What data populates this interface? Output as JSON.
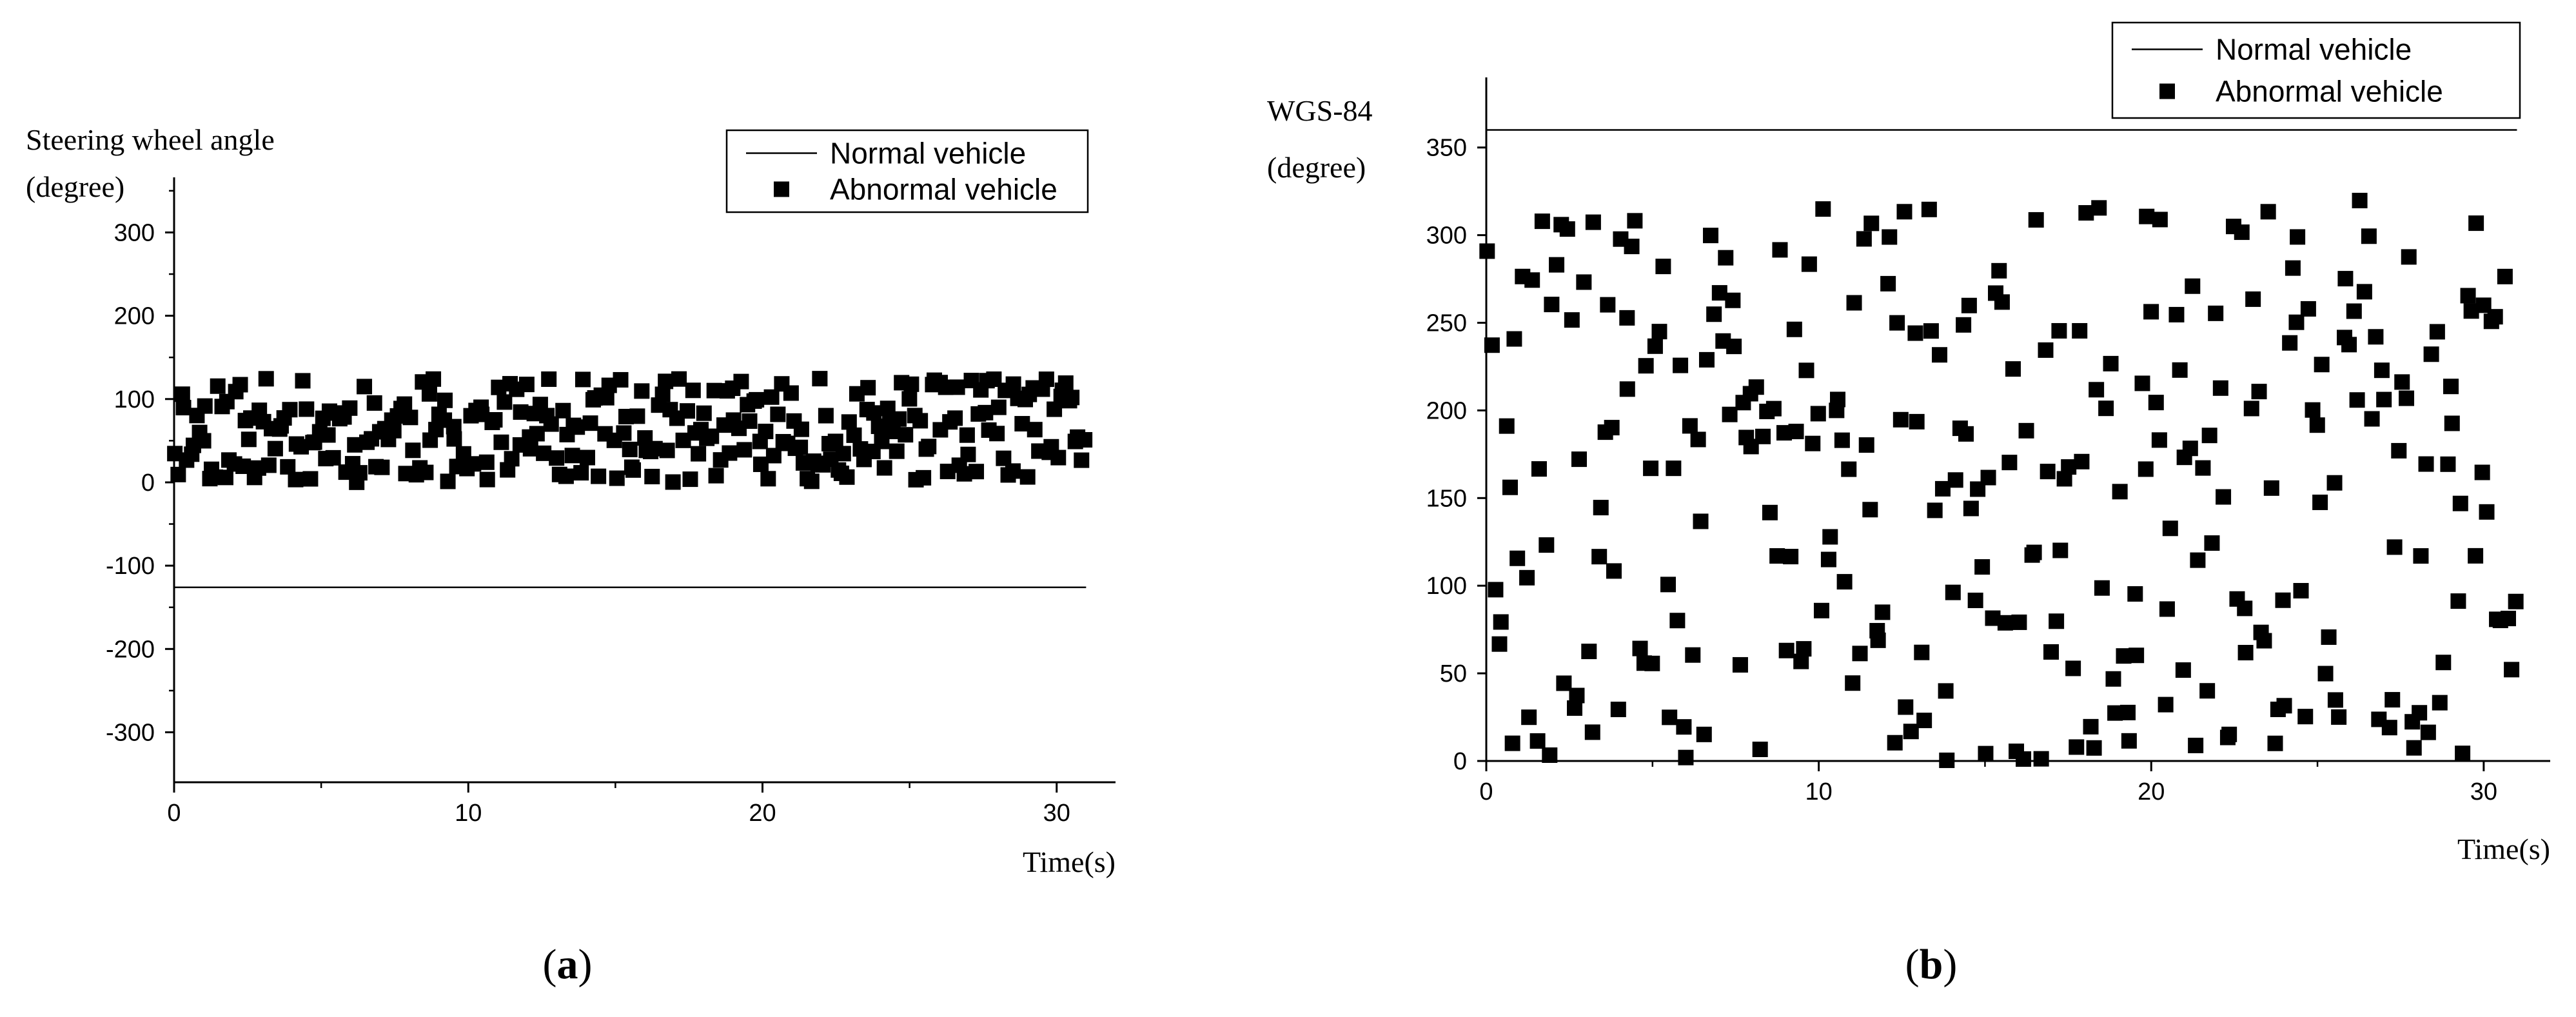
{
  "chart_data": [
    {
      "type": "scatter",
      "panel_label_open": "(",
      "panel_label_letter": "a",
      "panel_label_close": ")",
      "xlabel": "Time(s)",
      "ylabel_line1": "Steering wheel angle",
      "ylabel_line2": "(degree)",
      "xlim": [
        0,
        32
      ],
      "ylim": [
        -360,
        370
      ],
      "x_ticks": [
        0,
        10,
        20,
        30
      ],
      "y_ticks": [
        -300,
        -200,
        -100,
        0,
        100,
        200,
        300
      ],
      "legend_placement": "top-right",
      "series": [
        {
          "name": "Normal vehicle",
          "kind": "line",
          "y_const": -126,
          "x_range": [
            0,
            31
          ]
        },
        {
          "name": "Abnormal vehicle",
          "kind": "scatter",
          "y_range": [
            0,
            125
          ],
          "x_range": [
            0,
            31
          ],
          "count": 300
        }
      ]
    },
    {
      "type": "scatter",
      "panel_label_open": "(",
      "panel_label_letter": "b",
      "panel_label_close": ")",
      "xlabel": "Time(s)",
      "ylabel_line1": "WGS-84",
      "ylabel_line2": "(degree)",
      "xlim": [
        0,
        32
      ],
      "ylim": [
        0,
        390
      ],
      "x_ticks": [
        0,
        10,
        20,
        30
      ],
      "y_ticks": [
        0,
        50,
        100,
        150,
        200,
        250,
        300,
        350
      ],
      "legend_placement": "top-right",
      "series": [
        {
          "name": "Normal vehicle",
          "kind": "line",
          "y_const": 360,
          "x_range": [
            0,
            31
          ]
        },
        {
          "name": "Abnormal vehicle",
          "kind": "scatter",
          "y_range": [
            0,
            320
          ],
          "x_range": [
            0,
            31
          ],
          "count": 300
        }
      ]
    }
  ]
}
